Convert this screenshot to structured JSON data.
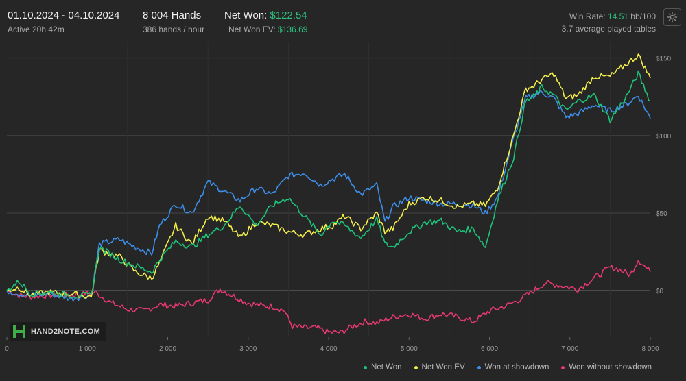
{
  "header": {
    "date_range": "01.10.2024 - 04.10.2024",
    "active": "Active 20h 42m",
    "hands": "8 004 Hands",
    "hands_per_hour": "386 hands / hour",
    "net_won_label": "Net Won:",
    "net_won_value": "$122.54",
    "net_won_ev_label": "Net Won  EV:",
    "net_won_ev_value": "$136.69",
    "win_rate_label": "Win Rate:",
    "win_rate_value": "14.51",
    "win_rate_unit": "bb/100",
    "avg_tables": "3.7 average played tables"
  },
  "logo_text": "HAND2NOTE.COM",
  "colors": {
    "net_won": "#1ec37a",
    "net_won_ev": "#f3ef4a",
    "won_at_showdown": "#3d8fe8",
    "won_without_showdown": "#e6396f",
    "accent_green": "#2ec27e"
  },
  "chart_data": {
    "type": "line",
    "xlim": [
      0,
      8000
    ],
    "ylim": [
      -30,
      160
    ],
    "x_ticks": [
      0,
      1000,
      2000,
      3000,
      4000,
      5000,
      6000,
      7000,
      8000
    ],
    "x_tick_labels": [
      "0",
      "1 000",
      "2 000",
      "3 000",
      "4 000",
      "5 000",
      "6 000",
      "7 000",
      "8 000"
    ],
    "y_ticks": [
      0,
      50,
      100,
      150
    ],
    "y_tick_labels": [
      "$0",
      "$50",
      "$100",
      "$150"
    ],
    "grid": true,
    "legend_position": "bottom-right",
    "series": [
      {
        "name": "Net Won",
        "color": "#1ec37a",
        "points": [
          [
            0,
            0
          ],
          [
            150,
            6
          ],
          [
            300,
            -2
          ],
          [
            500,
            -1
          ],
          [
            800,
            -3
          ],
          [
            1050,
            -3
          ],
          [
            1150,
            28
          ],
          [
            1400,
            20
          ],
          [
            1600,
            16
          ],
          [
            1800,
            12
          ],
          [
            1900,
            20
          ],
          [
            2100,
            32
          ],
          [
            2300,
            28
          ],
          [
            2500,
            36
          ],
          [
            2700,
            42
          ],
          [
            2900,
            55
          ],
          [
            3100,
            42
          ],
          [
            3300,
            55
          ],
          [
            3500,
            60
          ],
          [
            3700,
            48
          ],
          [
            3900,
            36
          ],
          [
            4050,
            45
          ],
          [
            4200,
            42
          ],
          [
            4400,
            34
          ],
          [
            4600,
            46
          ],
          [
            4700,
            30
          ],
          [
            4800,
            28
          ],
          [
            5000,
            38
          ],
          [
            5200,
            44
          ],
          [
            5400,
            45
          ],
          [
            5600,
            38
          ],
          [
            5800,
            40
          ],
          [
            5950,
            28
          ],
          [
            6100,
            58
          ],
          [
            6300,
            86
          ],
          [
            6450,
            122
          ],
          [
            6550,
            125
          ],
          [
            6650,
            131
          ],
          [
            6800,
            126
          ],
          [
            6950,
            116
          ],
          [
            7100,
            122
          ],
          [
            7300,
            126
          ],
          [
            7500,
            110
          ],
          [
            7700,
            125
          ],
          [
            7850,
            140
          ],
          [
            8000,
            122
          ]
        ]
      },
      {
        "name": "Net Won  EV",
        "color": "#f3ef4a",
        "points": [
          [
            0,
            0
          ],
          [
            150,
            2
          ],
          [
            300,
            -3
          ],
          [
            500,
            -1
          ],
          [
            800,
            -2
          ],
          [
            1050,
            -4
          ],
          [
            1150,
            26
          ],
          [
            1400,
            22
          ],
          [
            1600,
            12
          ],
          [
            1800,
            8
          ],
          [
            1900,
            18
          ],
          [
            2100,
            42
          ],
          [
            2300,
            30
          ],
          [
            2500,
            48
          ],
          [
            2700,
            45
          ],
          [
            2900,
            34
          ],
          [
            3100,
            44
          ],
          [
            3300,
            42
          ],
          [
            3500,
            38
          ],
          [
            3700,
            36
          ],
          [
            3900,
            40
          ],
          [
            4050,
            42
          ],
          [
            4200,
            48
          ],
          [
            4400,
            40
          ],
          [
            4600,
            50
          ],
          [
            4700,
            38
          ],
          [
            4800,
            40
          ],
          [
            5000,
            56
          ],
          [
            5200,
            60
          ],
          [
            5400,
            58
          ],
          [
            5600,
            54
          ],
          [
            5800,
            56
          ],
          [
            5950,
            55
          ],
          [
            6100,
            66
          ],
          [
            6300,
            100
          ],
          [
            6450,
            130
          ],
          [
            6550,
            132
          ],
          [
            6650,
            136
          ],
          [
            6800,
            140
          ],
          [
            6950,
            124
          ],
          [
            7100,
            126
          ],
          [
            7300,
            138
          ],
          [
            7500,
            138
          ],
          [
            7700,
            146
          ],
          [
            7850,
            152
          ],
          [
            8000,
            137
          ]
        ]
      },
      {
        "name": "Won at showdown",
        "color": "#3d8fe8",
        "points": [
          [
            0,
            0
          ],
          [
            150,
            -2
          ],
          [
            300,
            -3
          ],
          [
            500,
            -2
          ],
          [
            800,
            -5
          ],
          [
            1050,
            -3
          ],
          [
            1150,
            30
          ],
          [
            1400,
            33
          ],
          [
            1600,
            28
          ],
          [
            1800,
            24
          ],
          [
            1900,
            42
          ],
          [
            2100,
            56
          ],
          [
            2300,
            50
          ],
          [
            2500,
            70
          ],
          [
            2700,
            64
          ],
          [
            2900,
            58
          ],
          [
            3100,
            66
          ],
          [
            3300,
            62
          ],
          [
            3500,
            74
          ],
          [
            3700,
            76
          ],
          [
            3900,
            68
          ],
          [
            4050,
            72
          ],
          [
            4200,
            75
          ],
          [
            4400,
            62
          ],
          [
            4600,
            68
          ],
          [
            4700,
            44
          ],
          [
            4800,
            54
          ],
          [
            5000,
            60
          ],
          [
            5200,
            58
          ],
          [
            5400,
            56
          ],
          [
            5600,
            56
          ],
          [
            5800,
            55
          ],
          [
            5950,
            50
          ],
          [
            6100,
            60
          ],
          [
            6300,
            98
          ],
          [
            6450,
            124
          ],
          [
            6550,
            126
          ],
          [
            6650,
            128
          ],
          [
            6800,
            124
          ],
          [
            6950,
            112
          ],
          [
            7100,
            114
          ],
          [
            7300,
            120
          ],
          [
            7500,
            116
          ],
          [
            7700,
            120
          ],
          [
            7850,
            126
          ],
          [
            8000,
            111
          ]
        ]
      },
      {
        "name": "Won without showdown",
        "color": "#e6396f",
        "points": [
          [
            0,
            0
          ],
          [
            150,
            -3
          ],
          [
            300,
            -4
          ],
          [
            500,
            -3
          ],
          [
            800,
            -3
          ],
          [
            1100,
            -1
          ],
          [
            1300,
            -8
          ],
          [
            1500,
            -12
          ],
          [
            1700,
            -13
          ],
          [
            1900,
            -9
          ],
          [
            2100,
            -10
          ],
          [
            2300,
            -8
          ],
          [
            2500,
            -6
          ],
          [
            2650,
            1
          ],
          [
            2800,
            -3
          ],
          [
            3000,
            -8
          ],
          [
            3200,
            -10
          ],
          [
            3300,
            -10
          ],
          [
            3450,
            -13
          ],
          [
            3550,
            -23
          ],
          [
            3700,
            -24
          ],
          [
            3850,
            -24
          ],
          [
            4000,
            -27
          ],
          [
            4150,
            -27
          ],
          [
            4300,
            -23
          ],
          [
            4450,
            -20
          ],
          [
            4600,
            -21
          ],
          [
            4800,
            -17
          ],
          [
            5000,
            -15
          ],
          [
            5200,
            -18
          ],
          [
            5400,
            -15
          ],
          [
            5600,
            -17
          ],
          [
            5800,
            -20
          ],
          [
            6000,
            -13
          ],
          [
            6200,
            -10
          ],
          [
            6400,
            -5
          ],
          [
            6550,
            0
          ],
          [
            6700,
            5
          ],
          [
            6900,
            3
          ],
          [
            7100,
            1
          ],
          [
            7300,
            8
          ],
          [
            7500,
            15
          ],
          [
            7600,
            14
          ],
          [
            7750,
            10
          ],
          [
            7850,
            20
          ],
          [
            8000,
            12
          ]
        ]
      }
    ]
  }
}
